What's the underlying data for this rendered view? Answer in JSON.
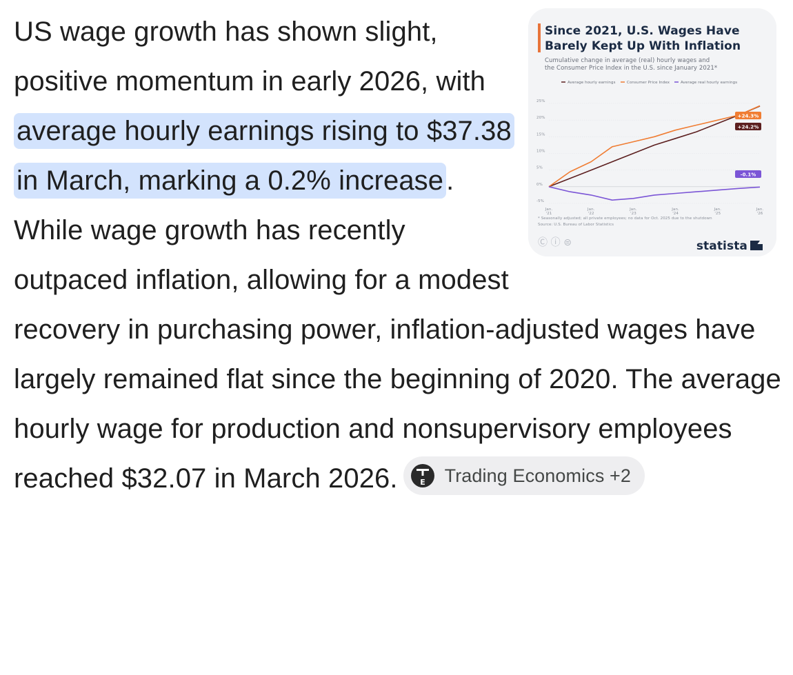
{
  "answer": {
    "text_before": "US wage growth has shown slight, positive momentum in early 2026, with ",
    "highlight": "average hourly earnings rising to $37.38 in March, marking a 0.2% increase",
    "text_after": ". While wage growth has recently outpaced inflation, allowing for a modest recovery in purchasing power, inflation-adjusted wages have largely remained flat since the beginning of 2020. The average hourly wage for production and nonsupervisory employees reached $32.07 in March 2026."
  },
  "source_chip": {
    "label": "Trading Economics +2",
    "logo_letters": "TE"
  },
  "thumbnail": {
    "title_line1": "Since 2021, U.S. Wages Have",
    "title_line2": "Barely Kept Up With Inflation",
    "subtitle_line1": "Cumulative change in average (real) hourly wages and",
    "subtitle_line2": "the Consumer Price Index in the U.S. since January 2021*",
    "footnote_line1": "* Seasonally adjusted; all private employees; no data for Oct. 2025 due to the shutdown",
    "footnote_line2": "Source: U.S. Bureau of Labor Statistics",
    "brand": "statista",
    "license_icons": "Ⓒ ⓘ ⊜",
    "colors": {
      "accent_bar": "#e8743b",
      "title": "#1b2b44"
    },
    "chart_data": {
      "type": "line",
      "x": [
        "2021-01",
        "2021-07",
        "2022-01",
        "2022-07",
        "2023-01",
        "2023-07",
        "2024-01",
        "2024-07",
        "2025-01",
        "2025-07",
        "2026-01"
      ],
      "x_ticks": [
        {
          "line1": "Jan.",
          "line2": "'21"
        },
        {
          "line1": "Jan.",
          "line2": "'22"
        },
        {
          "line1": "Jan.",
          "line2": "'23"
        },
        {
          "line1": "Jan.",
          "line2": "'24"
        },
        {
          "line1": "Jan.",
          "line2": "'25"
        },
        {
          "line1": "Jan.",
          "line2": "'26"
        }
      ],
      "y_ticks": [
        "25%",
        "20%",
        "15%",
        "10%",
        "5%",
        "0%",
        "-5%"
      ],
      "ylim": [
        -5,
        25
      ],
      "grid": true,
      "legend_position": "top",
      "series": [
        {
          "name": "Average hourly earnings",
          "color": "#5c1f1f",
          "values": [
            0,
            2.5,
            5,
            7.5,
            10,
            12.5,
            14.5,
            16.5,
            19,
            21.5,
            24.2
          ],
          "end_label": "+24.2%"
        },
        {
          "name": "Consumer Price Index",
          "color": "#f07d33",
          "values": [
            0,
            4.5,
            7.5,
            12,
            13.5,
            15,
            17,
            18.5,
            20,
            21.5,
            24.3
          ],
          "end_label": "+24.3%"
        },
        {
          "name": "Average real hourly earnings",
          "color": "#7b55d6",
          "values": [
            0,
            -1.5,
            -2.5,
            -4,
            -3.5,
            -2.5,
            -2,
            -1.5,
            -1,
            -0.5,
            -0.1
          ],
          "end_label": "-0.1%"
        }
      ]
    }
  }
}
